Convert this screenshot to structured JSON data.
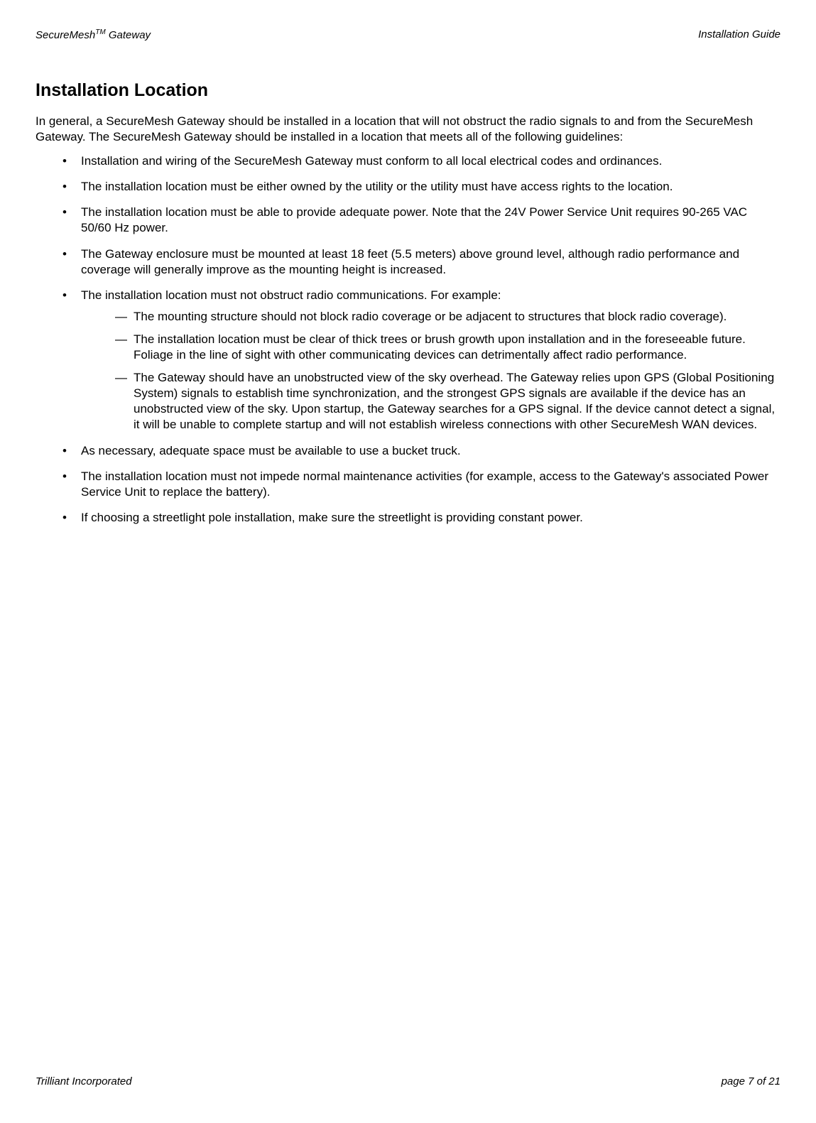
{
  "header": {
    "left_prefix": "SecureMesh",
    "left_super": "TM",
    "left_suffix": " Gateway",
    "right": "Installation Guide"
  },
  "heading": "Installation Location",
  "intro": "In general, a SecureMesh Gateway should be installed in a location that will not obstruct the radio signals to and from the SecureMesh Gateway.  The SecureMesh Gateway should be installed in a location that meets all of the following guidelines:",
  "bullets": {
    "b0": "Installation and wiring of the SecureMesh Gateway must conform to all local electrical codes and ordinances.",
    "b1": "The installation location must be either owned by the utility or the utility must have access rights to the location.",
    "b2": "The installation location must be able to provide adequate power.  Note that the 24V Power Service Unit requires 90-265 VAC 50/60 Hz power.",
    "b3": "The Gateway enclosure must be mounted at least 18 feet (5.5 meters) above ground level, although radio performance and coverage will generally improve as the mounting height is increased.",
    "b4": "The installation location must not obstruct radio communications.  For example:",
    "b4_sub": {
      "s0": "The mounting structure should not block radio coverage or be adjacent to structures that block radio coverage).",
      "s1": "The installation location must be clear of thick trees or brush growth upon installation and in the foreseeable future.  Foliage in the line of sight with other communicating devices can detrimentally affect radio performance.",
      "s2": "The Gateway should have an unobstructed view of the sky overhead.  The Gateway relies upon GPS (Global Positioning System) signals to establish time synchronization, and the strongest GPS signals are available if the device has an unobstructed view of the sky.  Upon startup, the Gateway searches for a GPS signal.  If the device cannot detect a signal, it will be unable to complete startup and will not establish wireless connections with other SecureMesh WAN devices."
    },
    "b5": "As necessary, adequate space must be available to use a bucket truck.",
    "b6": "The installation location must not impede normal maintenance activities (for example, access to the Gateway's associated Power Service Unit to replace the battery).",
    "b7": "If choosing a streetlight pole installation, make sure the streetlight is providing constant power."
  },
  "footer": {
    "left": "Trilliant Incorporated",
    "right": "page 7 of 21"
  }
}
